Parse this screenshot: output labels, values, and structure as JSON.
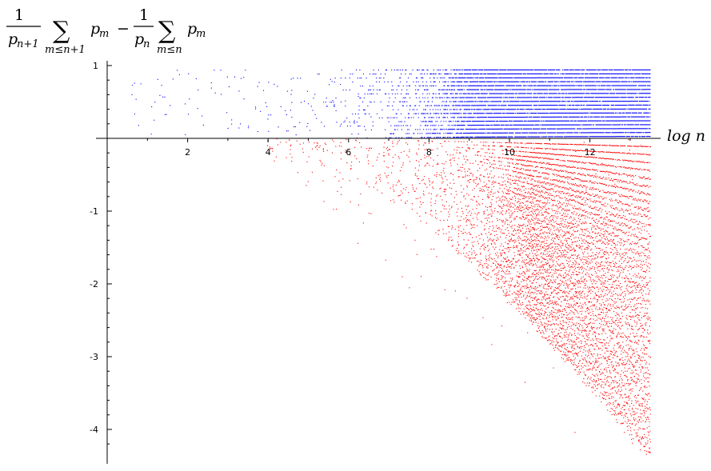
{
  "chart_data": {
    "type": "scatter",
    "title": "",
    "ylabel_formula": {
      "frac1_num": "1",
      "frac1_den": "p",
      "frac1_den_sub": "n+1",
      "sum1_symbol": "∑",
      "sum1_index": "m≤n+1",
      "term1": "p",
      "term1_sub": "m",
      "minus": "−",
      "frac2_num": "1",
      "frac2_den": "p",
      "frac2_den_sub": "n",
      "sum2_symbol": "∑",
      "sum2_index": "m≤n",
      "term2": "p",
      "term2_sub": "m"
    },
    "xlabel": "log n",
    "xlim": [
      0.3,
      13.5
    ],
    "ylim": [
      -4.4,
      1.05
    ],
    "x_ticks": [
      2,
      4,
      6,
      8,
      10,
      12
    ],
    "y_ticks": [
      1,
      -1,
      -2,
      -3,
      -4
    ],
    "grid": false,
    "legend": "none",
    "series": [
      {
        "color": "#0000ff",
        "y_range": [
          0,
          1
        ],
        "x_range": [
          0.6,
          13.5
        ],
        "description_points": [
          [
            0.6,
            0.52
          ],
          [
            1.0,
            0.5
          ],
          [
            1.4,
            0.83
          ],
          [
            1.7,
            0.5
          ],
          [
            2.1,
            0.82
          ],
          [
            2.4,
            0.51
          ],
          [
            2.6,
            0.84
          ],
          [
            3.0,
            0.72
          ],
          [
            3.6,
            0.25
          ],
          [
            4.2,
            0.55
          ],
          [
            5.0,
            0.9
          ],
          [
            6.0,
            0.22
          ],
          [
            7.0,
            0.6
          ],
          [
            8.0,
            0.95
          ],
          [
            10.0,
            0.88
          ],
          [
            12.0,
            0.91
          ],
          [
            13.5,
            0.93
          ]
        ]
      },
      {
        "color": "#ff0000",
        "y_range": [
          -4.3,
          0
        ],
        "x_range": [
          3.5,
          13.5
        ],
        "description_points": [
          [
            3.8,
            -0.55
          ],
          [
            4.8,
            -1.52
          ],
          [
            5.5,
            -0.45
          ],
          [
            6.3,
            -0.9
          ],
          [
            7.0,
            -1.2
          ],
          [
            7.8,
            -1.4
          ],
          [
            8.2,
            -2.6
          ],
          [
            9.0,
            -2.3
          ],
          [
            10.2,
            -3.3
          ],
          [
            11.0,
            -3.5
          ],
          [
            12.0,
            -3.8
          ],
          [
            12.5,
            -4.1
          ],
          [
            13.4,
            -3.9
          ],
          [
            13.5,
            -2.5
          ]
        ]
      }
    ]
  }
}
